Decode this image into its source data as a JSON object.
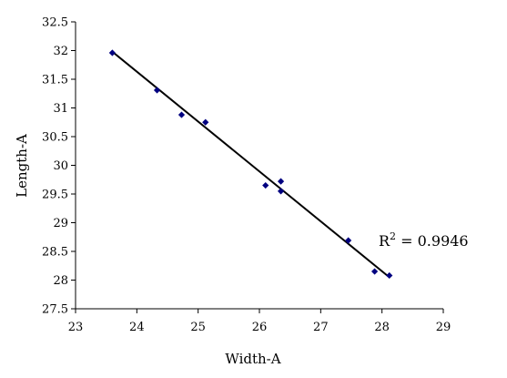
{
  "chart_data": {
    "type": "scatter",
    "xlabel": "Width-A",
    "ylabel": "Length-A",
    "xlim": [
      23,
      29
    ],
    "ylim": [
      27.5,
      32.5
    ],
    "xticks": [
      23,
      24,
      25,
      26,
      27,
      28,
      29
    ],
    "yticks": [
      27.5,
      28,
      28.5,
      29,
      29.5,
      30,
      30.5,
      31,
      31.5,
      32,
      32.5
    ],
    "xtick_labels": [
      "23",
      "24",
      "25",
      "26",
      "27",
      "28",
      "29"
    ],
    "ytick_labels": [
      "27.5",
      "28",
      "28.5",
      "29",
      "29.5",
      "30",
      "30.5",
      "31",
      "31.5",
      "32",
      "32.5"
    ],
    "grid": false,
    "legend": "none",
    "marker_color": "#000080",
    "trendline_color": "#000000",
    "series": [
      {
        "x": [
          23.6,
          24.33,
          24.73,
          25.12,
          26.1,
          26.35,
          26.35,
          27.45,
          27.88,
          28.12
        ],
        "y": [
          31.96,
          31.31,
          30.88,
          30.75,
          29.65,
          29.72,
          29.55,
          28.69,
          28.15,
          28.08
        ]
      }
    ],
    "trendline": {
      "type": "linear",
      "x": [
        23.6,
        28.12
      ],
      "y": [
        31.98,
        28.05
      ],
      "r_squared_label": "R",
      "r_squared_sup": "2",
      "r_squared_value": " = 0.9946"
    }
  }
}
